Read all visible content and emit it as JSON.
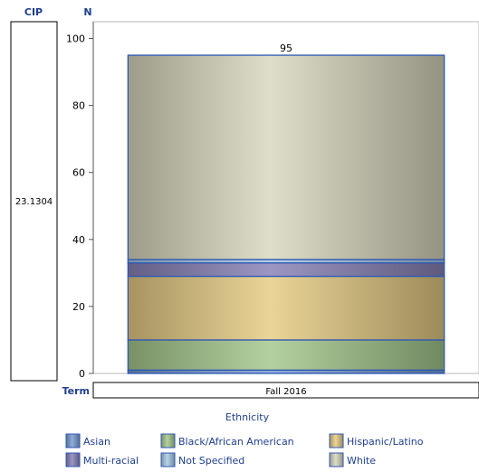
{
  "header": {
    "cip_label": "CIP",
    "n_label": "N",
    "term_label": "Term"
  },
  "cip_value": "23.1304",
  "chart_data": {
    "type": "bar",
    "stacked": true,
    "categories": [
      "Fall 2016"
    ],
    "ylabel": "N",
    "xlabel": "Term",
    "ylim": [
      0,
      105
    ],
    "yticks": [
      0,
      20,
      40,
      60,
      80,
      100
    ],
    "total_labels": [
      "95"
    ],
    "series": [
      {
        "name": "Asian",
        "values": [
          1
        ],
        "color": "#7a9fd2"
      },
      {
        "name": "Black/African American",
        "values": [
          9
        ],
        "color": "#a6c98e"
      },
      {
        "name": "Hispanic/Latino",
        "values": [
          19
        ],
        "color": "#e6cc85"
      },
      {
        "name": "Multi-racial",
        "values": [
          4
        ],
        "color": "#8a83b8"
      },
      {
        "name": "Not Specified",
        "values": [
          1
        ],
        "color": "#a9cbe4"
      },
      {
        "name": "White",
        "values": [
          61
        ],
        "color": "#d9d8bf"
      }
    ],
    "legend": {
      "title": "Ethnicity",
      "position": "bottom"
    }
  }
}
